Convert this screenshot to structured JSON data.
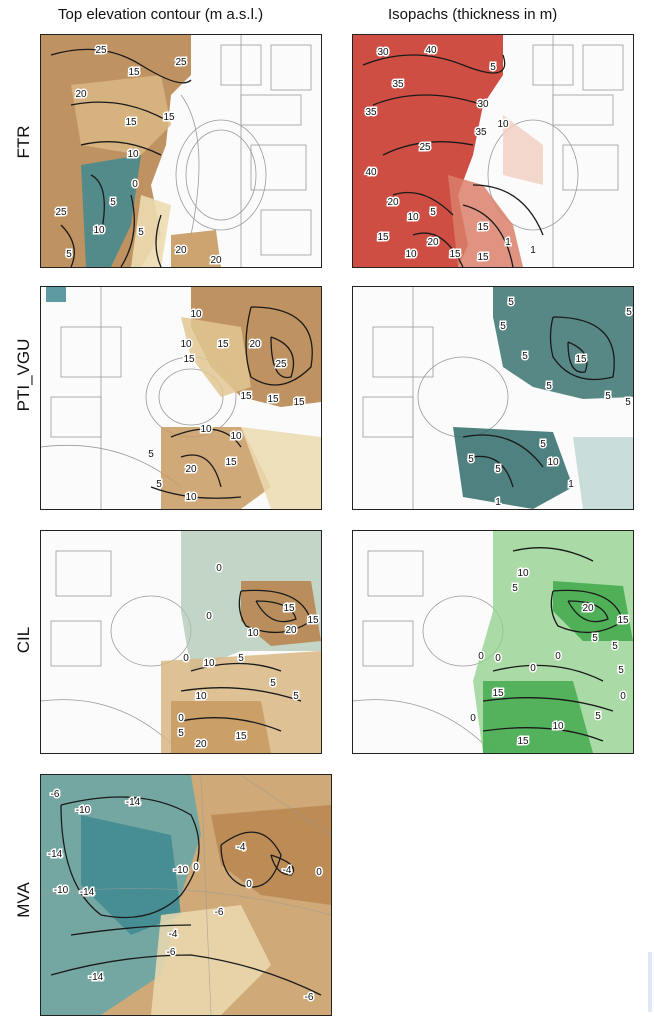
{
  "columns": {
    "left_title": "Top elevation contour (m a.s.l.)",
    "right_title": "Isopachs (thickness in m)"
  },
  "rows": [
    {
      "key": "ftr",
      "label": "FTR"
    },
    {
      "key": "pti",
      "label": "PTI_VGU"
    },
    {
      "key": "cil",
      "label": "CIL"
    },
    {
      "key": "mva",
      "label": "MVA"
    }
  ],
  "colors": {
    "elevation_high": "#9a6a3a",
    "elevation_mid": "#e8d3a0",
    "elevation_low": "#3f8a92",
    "ftr_isopach": "#c8352a",
    "pti_isopach": "#2f6b68",
    "cil_isopach": "#3fa84a",
    "contour": "#1a1a1a",
    "basemap": "#9a9a9a"
  },
  "contour_labels": {
    "ftr_top": [
      "25",
      "25",
      "15",
      "20",
      "15",
      "15",
      "10",
      "0",
      "5",
      "10",
      "25",
      "5",
      "5",
      "20",
      "20"
    ],
    "ftr_iso": [
      "30",
      "40",
      "35",
      "35",
      "5",
      "30",
      "10",
      "25",
      "35",
      "40",
      "20",
      "10",
      "15",
      "5",
      "20",
      "1",
      "1",
      "15",
      "10",
      "15",
      "15"
    ],
    "pti_top": [
      "10",
      "10",
      "15",
      "15",
      "20",
      "25",
      "15",
      "15",
      "15",
      "10",
      "10",
      "15",
      "20",
      "10",
      "5",
      "5"
    ],
    "pti_iso": [
      "5",
      "5",
      "5",
      "5",
      "15",
      "5",
      "5",
      "5",
      "10",
      "5",
      "5",
      "1",
      "1",
      "5"
    ],
    "cil_top": [
      "0",
      "0",
      "15",
      "10",
      "20",
      "15",
      "10",
      "5",
      "0",
      "5",
      "5",
      "10",
      "0",
      "5",
      "15",
      "20"
    ],
    "cil_iso": [
      "10",
      "5",
      "20",
      "15",
      "0",
      "0",
      "5",
      "5",
      "0",
      "0",
      "5",
      "15",
      "0",
      "15",
      "10",
      "5",
      "0"
    ],
    "mva_top": [
      "-6",
      "-10",
      "-14",
      "-14",
      "-10",
      "-14",
      "-14",
      "-10",
      "-6",
      "-4",
      "0",
      "-4",
      "-6",
      "0",
      "-4",
      "0",
      "-6"
    ]
  }
}
